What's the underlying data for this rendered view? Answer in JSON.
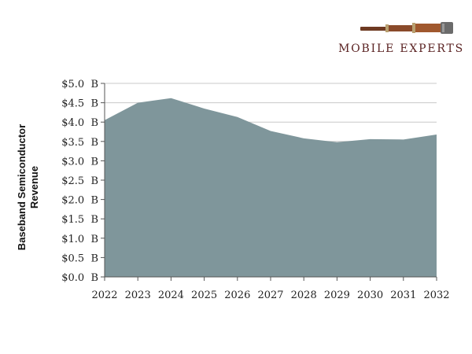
{
  "brand": {
    "name": "MOBILE EXPERTS",
    "logo_icon": "telescope-icon"
  },
  "chart_data": {
    "type": "area",
    "title": "",
    "xlabel": "",
    "ylabel_lines": [
      "Baseband Semiconductor",
      "Revenue"
    ],
    "categories": [
      "2022",
      "2023",
      "2024",
      "2025",
      "2026",
      "2027",
      "2028",
      "2029",
      "2030",
      "2031",
      "2032"
    ],
    "series": [
      {
        "name": "Baseband Semiconductor Revenue ($B)",
        "values": [
          4.05,
          4.5,
          4.62,
          4.35,
          4.13,
          3.77,
          3.58,
          3.48,
          3.56,
          3.55,
          3.68
        ]
      }
    ],
    "ylim": [
      0,
      5
    ],
    "yticks": [
      "$0.0  B",
      "$0.5  B",
      "$1.0  B",
      "$1.5  B",
      "$2.0  B",
      "$2.5  B",
      "$3.0  B",
      "$3.5  B",
      "$4.0  B",
      "$4.5  B",
      "$5.0  B"
    ],
    "grid": true,
    "colors": {
      "fill": "#7f969b",
      "grid": "#c8c8c8",
      "axis": "#555555"
    }
  }
}
